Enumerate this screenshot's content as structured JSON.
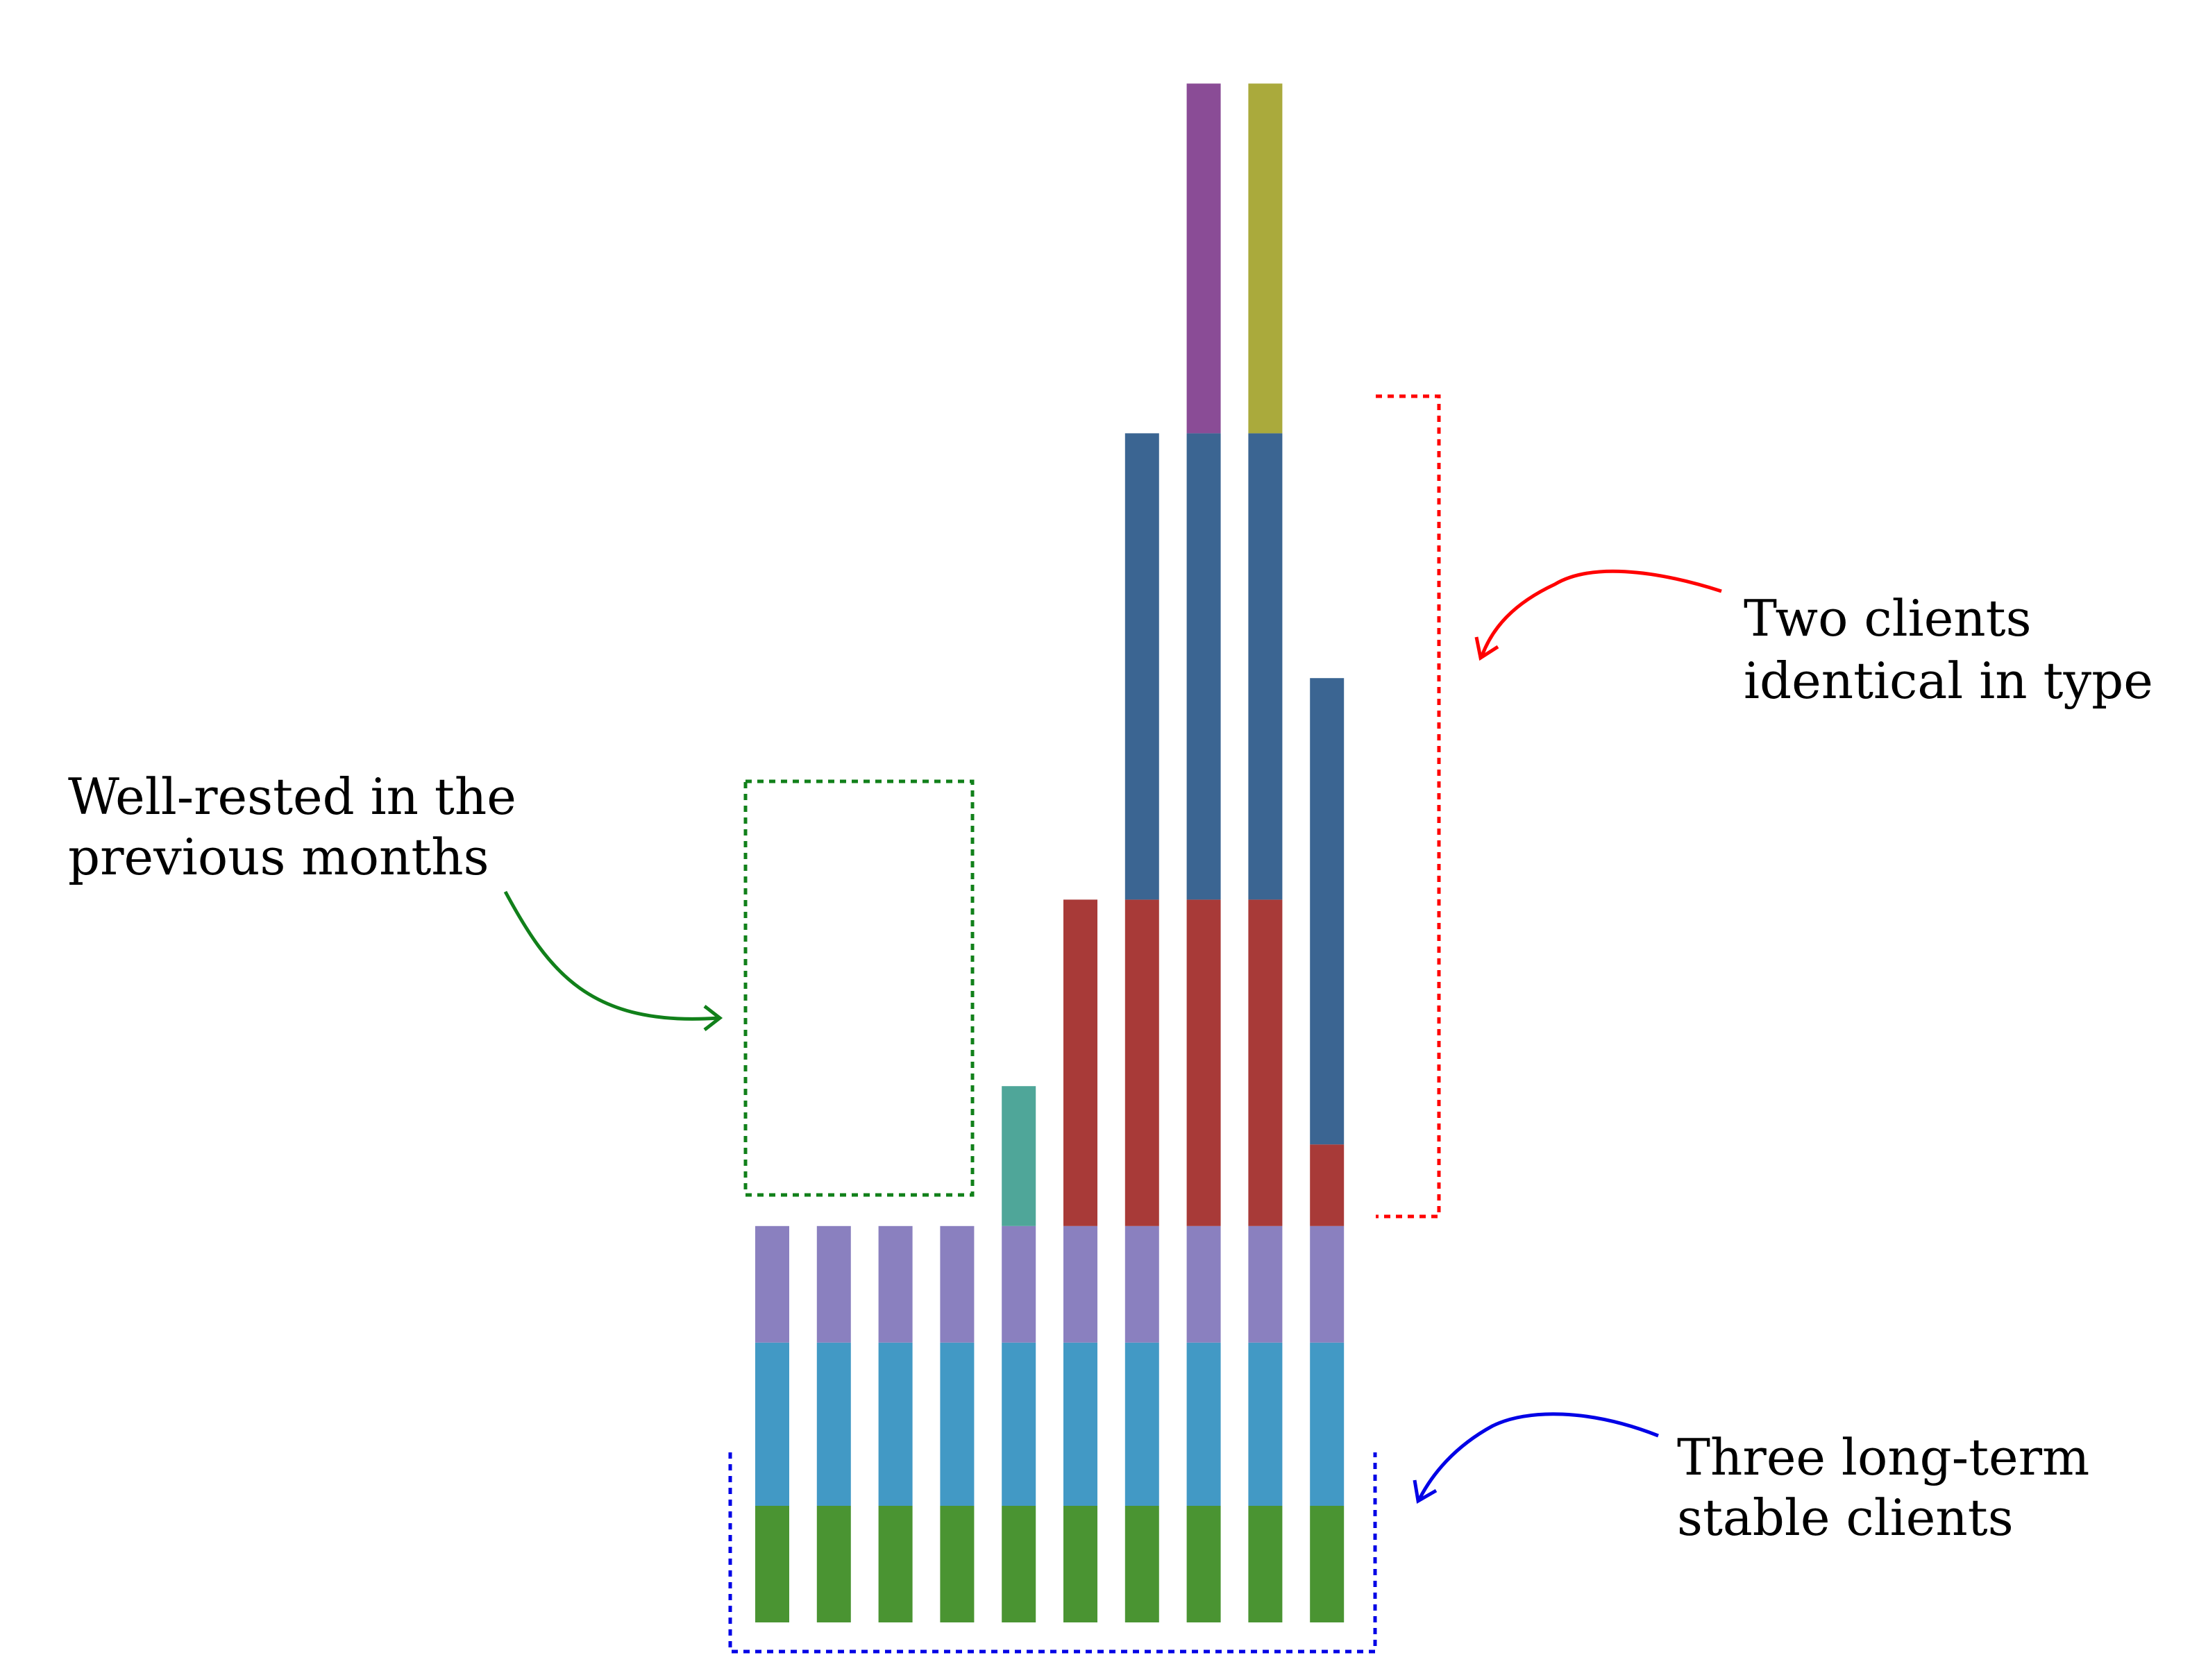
{
  "chart_data": {
    "type": "bar",
    "stacked": true,
    "title": "",
    "xlabel": "",
    "ylabel": "",
    "axes_visible": false,
    "grid": false,
    "legend": "none",
    "bar_count": 10,
    "ylim": [
      0,
      13.5
    ],
    "series": [
      {
        "color": "#4a9432",
        "values": [
          1,
          1,
          1,
          1,
          1,
          1,
          1,
          1,
          1,
          1
        ]
      },
      {
        "color": "#4299c5",
        "values": [
          1.4,
          1.4,
          1.4,
          1.4,
          1.4,
          1.4,
          1.4,
          1.4,
          1.4,
          1.4
        ]
      },
      {
        "color": "#8a80bf",
        "values": [
          1,
          1,
          1,
          1,
          1,
          1,
          1,
          1,
          1,
          1
        ]
      },
      {
        "color": "#4fa699",
        "values": [
          0,
          0,
          0,
          0,
          1.2,
          0,
          0,
          0,
          0,
          0
        ]
      },
      {
        "color": "#a83a38",
        "values": [
          0,
          0,
          0,
          0,
          0,
          2.8,
          2.8,
          2.8,
          2.8,
          0.7
        ]
      },
      {
        "color": "#3b6592",
        "values": [
          0,
          0,
          0,
          0,
          0,
          0,
          4,
          4,
          4,
          4
        ]
      },
      {
        "color": "#8a4c96",
        "values": [
          0,
          0,
          0,
          0,
          0,
          0,
          0,
          3,
          0,
          0
        ]
      },
      {
        "color": "#aaaa3c",
        "values": [
          0,
          0,
          0,
          0,
          0,
          0,
          0,
          0,
          3,
          0
        ]
      }
    ],
    "annotations": [
      {
        "id": "well-rested",
        "lines": [
          "Well-rested in the",
          "previous months"
        ],
        "color": "#11801a",
        "style": "dotted-box",
        "bars": [
          1,
          4
        ],
        "y_range": [
          3.6,
          7.2
        ]
      },
      {
        "id": "two-clients",
        "lines": [
          "Two clients",
          "identical in type"
        ],
        "color": "#ff0000",
        "style": "dotted-bracket",
        "y_range": [
          3.4,
          10.3
        ]
      },
      {
        "id": "three-stable",
        "lines": [
          "Three long-term",
          "stable clients"
        ],
        "color": "#0000e6",
        "style": "dotted-bracket",
        "bars": [
          1,
          10
        ],
        "y_range": [
          -0.3,
          1.45
        ]
      }
    ]
  }
}
